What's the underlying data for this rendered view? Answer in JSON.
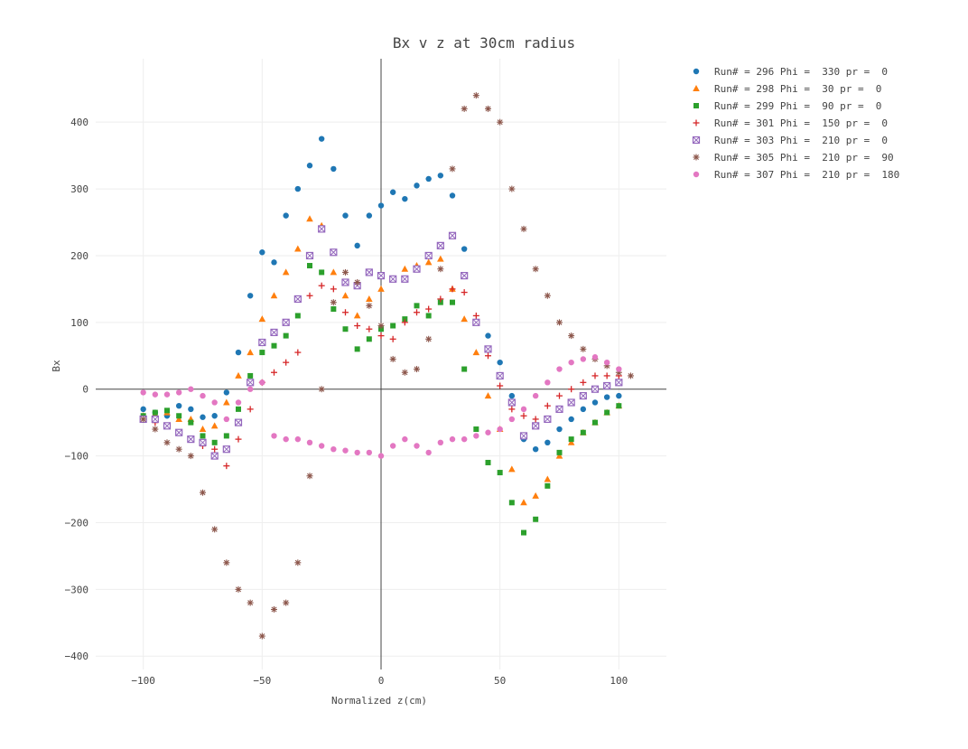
{
  "chart_data": {
    "type": "scatter",
    "title": "Bx v z at 30cm radius",
    "xlabel": "Normalized z(cm)",
    "ylabel": "Bx",
    "xlim": [
      -120,
      120
    ],
    "ylim": [
      -420,
      495
    ],
    "xticks": [
      -100,
      -50,
      0,
      50,
      100
    ],
    "yticks": [
      -400,
      -300,
      -200,
      -100,
      0,
      100,
      200,
      300,
      400
    ],
    "xtick_labels": [
      "−100",
      "−50",
      "0",
      "50",
      "100"
    ],
    "ytick_labels": [
      "−400",
      "−300",
      "−200",
      "−100",
      "0",
      "100",
      "200",
      "300",
      "400"
    ],
    "grid": true,
    "legend_position": "top-right",
    "series": [
      {
        "name": "Run# = 296 Phi =  330 pr =  0",
        "color": "#1f77b4",
        "marker": "circle",
        "x": [
          -100,
          -95,
          -90,
          -85,
          -80,
          -75,
          -70,
          -65,
          -60,
          -55,
          -50,
          -45,
          -40,
          -35,
          -30,
          -25,
          -20,
          -15,
          -10,
          -5,
          0,
          5,
          10,
          15,
          20,
          25,
          30,
          35,
          40,
          45,
          50,
          55,
          60,
          65,
          70,
          75,
          80,
          85,
          90,
          95,
          100
        ],
        "y": [
          -30,
          -35,
          -40,
          -25,
          -30,
          -42,
          -40,
          -5,
          55,
          140,
          205,
          190,
          260,
          300,
          335,
          375,
          330,
          260,
          215,
          260,
          275,
          295,
          285,
          305,
          315,
          320,
          290,
          210,
          100,
          80,
          40,
          -10,
          -75,
          -90,
          -80,
          -60,
          -45,
          -30,
          -20,
          -12,
          -10
        ]
      },
      {
        "name": "Run# = 298 Phi =  30 pr =  0",
        "color": "#ff7f0e",
        "marker": "triangle",
        "x": [
          -100,
          -95,
          -90,
          -85,
          -80,
          -75,
          -70,
          -65,
          -60,
          -55,
          -50,
          -45,
          -40,
          -35,
          -30,
          -25,
          -20,
          -15,
          -10,
          -5,
          0,
          5,
          10,
          15,
          20,
          25,
          30,
          35,
          40,
          45,
          50,
          55,
          60,
          65,
          70,
          75,
          80,
          85,
          90,
          95,
          100
        ],
        "y": [
          -40,
          -38,
          -35,
          -45,
          -45,
          -60,
          -55,
          -20,
          20,
          55,
          105,
          140,
          175,
          210,
          255,
          245,
          175,
          140,
          110,
          135,
          150,
          165,
          180,
          185,
          190,
          195,
          150,
          105,
          55,
          -10,
          -60,
          -120,
          -170,
          -160,
          -135,
          -100,
          -80,
          -65,
          -50,
          -35,
          -25
        ]
      },
      {
        "name": "Run# = 299 Phi =  90 pr =  0",
        "color": "#2ca02c",
        "marker": "square",
        "x": [
          -100,
          -95,
          -90,
          -85,
          -80,
          -75,
          -70,
          -65,
          -60,
          -55,
          -50,
          -45,
          -40,
          -35,
          -30,
          -25,
          -20,
          -15,
          -10,
          -5,
          0,
          5,
          10,
          15,
          20,
          25,
          30,
          35,
          40,
          45,
          50,
          55,
          60,
          65,
          70,
          75,
          80,
          85,
          90,
          95,
          100
        ],
        "y": [
          -40,
          -35,
          -32,
          -40,
          -50,
          -70,
          -80,
          -70,
          -30,
          20,
          55,
          65,
          80,
          110,
          185,
          175,
          120,
          90,
          60,
          75,
          90,
          95,
          105,
          125,
          110,
          130,
          130,
          30,
          -60,
          -110,
          -125,
          -170,
          -215,
          -195,
          -145,
          -95,
          -75,
          -65,
          -50,
          -35,
          -25
        ]
      },
      {
        "name": "Run# = 301 Phi =  150 pr =  0",
        "color": "#d62728",
        "marker": "cross",
        "x": [
          -100,
          -95,
          -90,
          -85,
          -80,
          -75,
          -70,
          -65,
          -60,
          -55,
          -50,
          -45,
          -40,
          -35,
          -30,
          -25,
          -20,
          -15,
          -10,
          -5,
          0,
          5,
          10,
          15,
          20,
          25,
          30,
          35,
          40,
          45,
          50,
          55,
          60,
          65,
          70,
          75,
          80,
          85,
          90,
          95,
          100
        ],
        "y": [
          -45,
          -50,
          -55,
          -65,
          -75,
          -85,
          -90,
          -115,
          -75,
          -30,
          10,
          25,
          40,
          55,
          140,
          155,
          150,
          115,
          95,
          90,
          80,
          75,
          100,
          115,
          120,
          135,
          150,
          145,
          110,
          50,
          5,
          -30,
          -40,
          -45,
          -25,
          -10,
          0,
          10,
          20,
          20,
          20
        ]
      },
      {
        "name": "Run# = 303 Phi =  210 pr =  0",
        "color": "#9467bd",
        "marker": "square-x",
        "x": [
          -100,
          -95,
          -90,
          -85,
          -80,
          -75,
          -70,
          -65,
          -60,
          -55,
          -50,
          -45,
          -40,
          -35,
          -30,
          -25,
          -20,
          -15,
          -10,
          -5,
          0,
          5,
          10,
          15,
          20,
          25,
          30,
          35,
          40,
          45,
          50,
          55,
          60,
          65,
          70,
          75,
          80,
          85,
          90,
          95,
          100
        ],
        "y": [
          -45,
          -45,
          -55,
          -65,
          -75,
          -80,
          -100,
          -90,
          -50,
          10,
          70,
          85,
          100,
          135,
          200,
          240,
          205,
          160,
          155,
          175,
          170,
          165,
          165,
          180,
          200,
          215,
          230,
          170,
          100,
          60,
          20,
          -20,
          -70,
          -55,
          -45,
          -30,
          -20,
          -10,
          0,
          5,
          10
        ]
      },
      {
        "name": "Run# = 305 Phi =  210 pr =  90",
        "color": "#8c564b",
        "marker": "asterisk",
        "x": [
          -100,
          -95,
          -90,
          -85,
          -80,
          -75,
          -70,
          -65,
          -60,
          -55,
          -50,
          -45,
          -40,
          -35,
          -30,
          -25,
          -20,
          -15,
          -10,
          -5,
          0,
          5,
          10,
          15,
          20,
          25,
          30,
          35,
          40,
          45,
          50,
          55,
          60,
          65,
          70,
          75,
          80,
          85,
          90,
          95,
          100,
          105
        ],
        "y": [
          -45,
          -60,
          -80,
          -90,
          -100,
          -155,
          -210,
          -260,
          -300,
          -320,
          -370,
          -330,
          -320,
          -260,
          -130,
          0,
          130,
          175,
          160,
          125,
          95,
          45,
          25,
          30,
          75,
          180,
          330,
          420,
          440,
          420,
          400,
          300,
          240,
          180,
          140,
          100,
          80,
          60,
          45,
          35,
          25,
          20
        ]
      },
      {
        "name": "Run# = 307 Phi =  210 pr =  180",
        "color": "#e377c2",
        "marker": "circle",
        "x": [
          -100,
          -95,
          -90,
          -85,
          -80,
          -75,
          -70,
          -65,
          -60,
          -55,
          -50,
          -45,
          -40,
          -35,
          -30,
          -25,
          -20,
          -15,
          -10,
          -5,
          0,
          5,
          10,
          15,
          20,
          25,
          30,
          35,
          40,
          45,
          50,
          55,
          60,
          65,
          70,
          75,
          80,
          85,
          90,
          95,
          100
        ],
        "y": [
          -5,
          -8,
          -8,
          -5,
          0,
          -10,
          -20,
          -45,
          -20,
          0,
          10,
          -70,
          -75,
          -75,
          -80,
          -85,
          -90,
          -92,
          -95,
          -95,
          -100,
          -85,
          -75,
          -85,
          -95,
          -80,
          -75,
          -75,
          -70,
          -65,
          -60,
          -45,
          -30,
          -10,
          10,
          30,
          40,
          45,
          48,
          40,
          30
        ]
      }
    ]
  }
}
